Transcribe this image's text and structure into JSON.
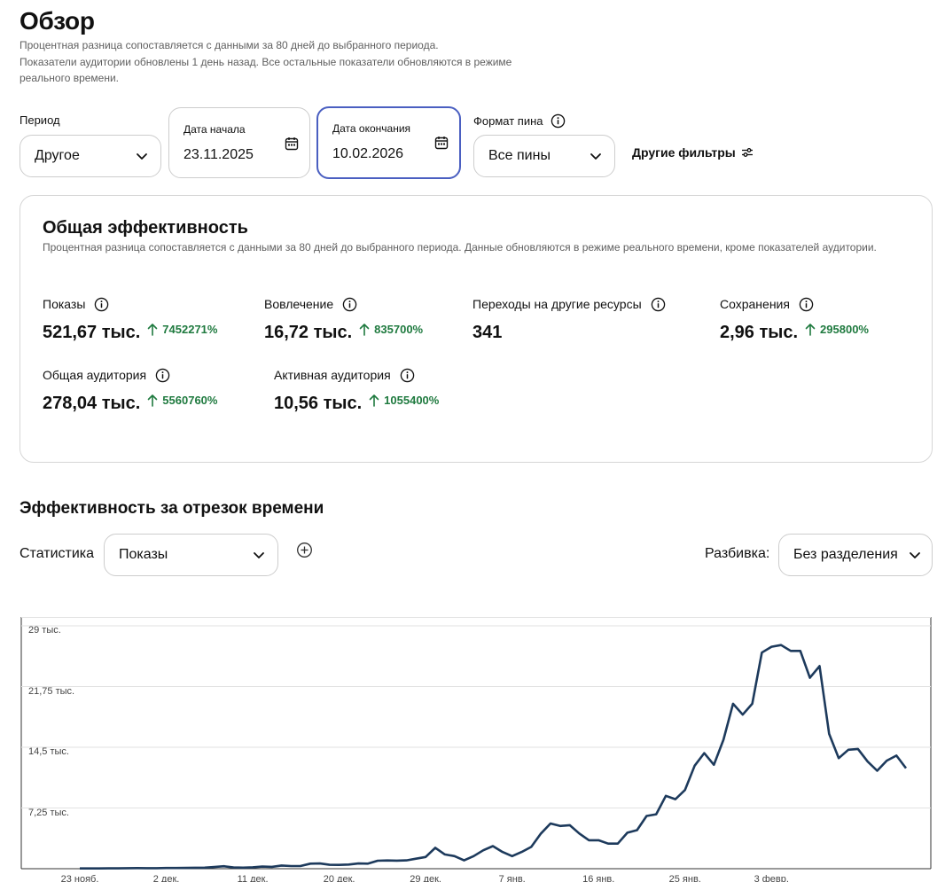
{
  "header": {
    "title": "Обзор",
    "subtitle_line1": "Процентная разница сопоставляется с данными за 80 дней до выбранного периода.",
    "subtitle_line2": "Показатели аудитории обновлены 1 день назад. Все остальные показатели обновляются в режиме реального времени."
  },
  "filters": {
    "period_label": "Период",
    "period_value": "Другое",
    "start_label": "Дата начала",
    "start_value": "23.11.2025",
    "end_label": "Дата окончания",
    "end_value": "10.02.2026",
    "pin_format_label": "Формат пина",
    "pin_format_value": "Все пины",
    "more_filters": "Другие фильтры"
  },
  "overview": {
    "title": "Общая эффективность",
    "subtitle": "Процентная разница сопоставляется с данными за 80 дней до выбранного периода. Данные обновляются в режиме реального времени, кроме показателей аудитории.",
    "metrics": [
      {
        "label": "Показы",
        "value": "521,67 тыс.",
        "change": "7452271%"
      },
      {
        "label": "Вовлечение",
        "value": "16,72 тыс.",
        "change": "835700%"
      },
      {
        "label": "Переходы на другие ресурсы",
        "value": "341",
        "change": ""
      },
      {
        "label": "Сохранения",
        "value": "2,96 тыс.",
        "change": "295800%"
      },
      {
        "label": "Общая аудитория",
        "value": "278,04 тыс.",
        "change": "5560760%"
      },
      {
        "label": "Активная аудитория",
        "value": "10,56 тыс.",
        "change": "1055400%"
      }
    ]
  },
  "timeline": {
    "title": "Эффективность за отрезок времени",
    "stat_label": "Статистика",
    "stat_value": "Показы",
    "split_label": "Разбивка:",
    "split_value": "Без разделения"
  },
  "colors": {
    "accent_border": "#4a5fc1",
    "positive": "#1f7a3f",
    "line": "#1d3a5c"
  },
  "icons": {
    "period_chevron": "chevron-down-icon",
    "calendar": "calendar-icon",
    "info": "info-icon",
    "filters": "sliders-icon",
    "change": "arrow-up-icon",
    "add": "plus-circle-icon"
  },
  "chart_data": {
    "type": "line",
    "title": "",
    "xlabel": "",
    "ylabel": "",
    "ylim": [
      0,
      29000
    ],
    "y_ticks": [
      7250,
      14500,
      21750,
      29000
    ],
    "y_tick_labels": [
      "7,25 тыс.",
      "14,5 тыс.",
      "21,75 тыс.",
      "29 тыс."
    ],
    "x_tick_labels": [
      "23 нояб.",
      "2 дек.",
      "11 дек.",
      "20 дек.",
      "29 дек.",
      "7 янв.",
      "16 янв.",
      "25 янв.",
      "3 февр."
    ],
    "grid": true,
    "series": [
      {
        "values": [
          30,
          30,
          30,
          40,
          40,
          60,
          70,
          60,
          60,
          80,
          80,
          100,
          120,
          130,
          200,
          300,
          150,
          130,
          170,
          250,
          220,
          380,
          320,
          330,
          600,
          620,
          470,
          460,
          500,
          620,
          600,
          950,
          980,
          960,
          1000,
          1200,
          1400,
          2500,
          1700,
          1500,
          1000,
          1500,
          2200,
          2700,
          2000,
          1500,
          2000,
          2600,
          4200,
          5400,
          5100,
          5200,
          4200,
          3400,
          3400,
          3000,
          3000,
          4300,
          4600,
          6300,
          6500,
          8700,
          8300,
          9400,
          12300,
          13800,
          12400,
          15400,
          19700,
          18400,
          19700,
          25800,
          26500,
          26700,
          26000,
          26000,
          22800,
          24200,
          16100,
          13200,
          14200,
          14300,
          12800,
          11700,
          12900,
          13500,
          12000
        ]
      }
    ]
  }
}
